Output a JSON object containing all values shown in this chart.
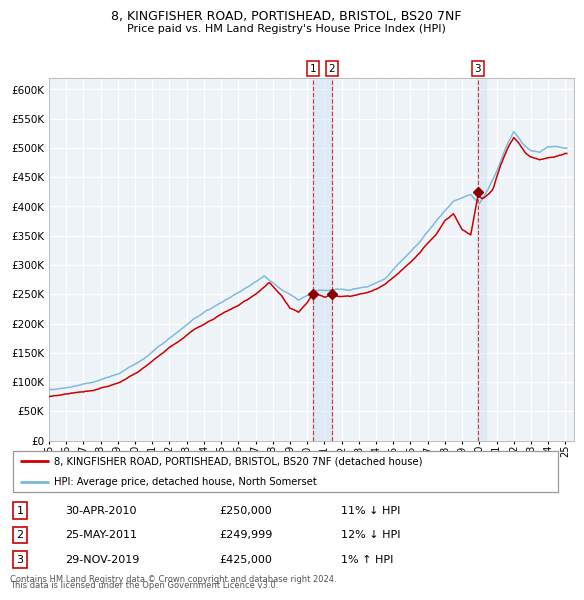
{
  "title": "8, KINGFISHER ROAD, PORTISHEAD, BRISTOL, BS20 7NF",
  "subtitle": "Price paid vs. HM Land Registry's House Price Index (HPI)",
  "legend_line1": "8, KINGFISHER ROAD, PORTISHEAD, BRISTOL, BS20 7NF (detached house)",
  "legend_line2": "HPI: Average price, detached house, North Somerset",
  "transactions": [
    {
      "label": "1",
      "date": "30-APR-2010",
      "price": 250000,
      "hpi_rel": "11% ↓ HPI",
      "x_year": 2010.33
    },
    {
      "label": "2",
      "date": "25-MAY-2011",
      "price": 249999,
      "hpi_rel": "12% ↓ HPI",
      "x_year": 2011.42
    },
    {
      "label": "3",
      "date": "29-NOV-2019",
      "price": 425000,
      "hpi_rel": "1% ↑ HPI",
      "x_year": 2019.91
    }
  ],
  "footnote1": "Contains HM Land Registry data © Crown copyright and database right 2024.",
  "footnote2": "This data is licensed under the Open Government Licence v3.0.",
  "hpi_color": "#7ab8d9",
  "price_color": "#cc0000",
  "marker_color": "#880000",
  "background_color": "#eef3f8",
  "highlight_color": "#cce0f0",
  "grid_color": "#ffffff",
  "ylim": [
    0,
    620000
  ],
  "yticks": [
    0,
    50000,
    100000,
    150000,
    200000,
    250000,
    300000,
    350000,
    400000,
    450000,
    500000,
    550000,
    600000
  ],
  "xlim_start": 1995,
  "xlim_end": 2025.5
}
